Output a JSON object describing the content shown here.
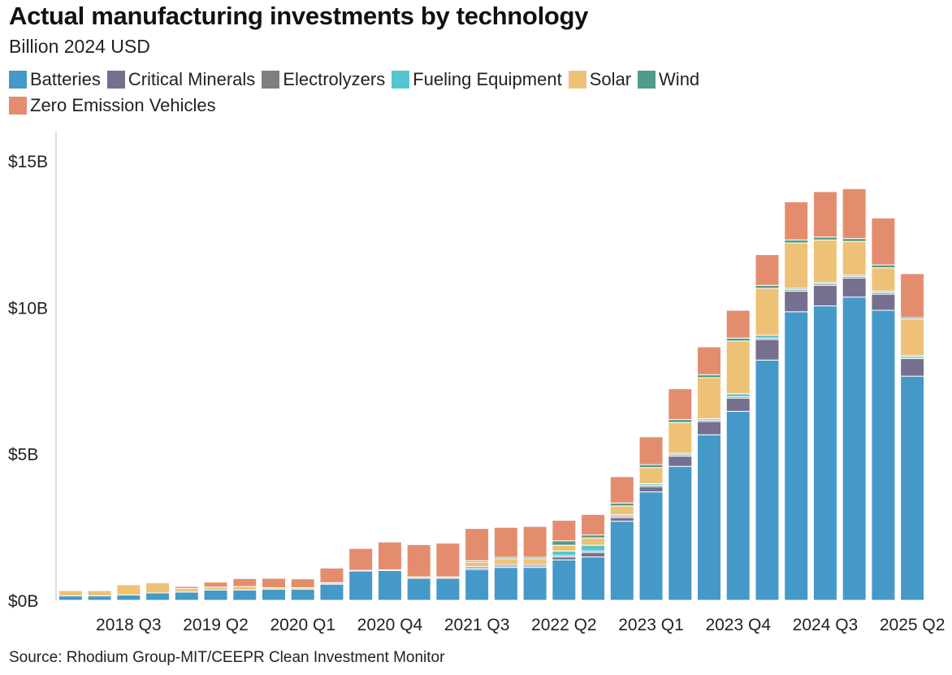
{
  "title": "Actual manufacturing investments by technology",
  "subtitle": "Billion 2024 USD",
  "source": "Source: Rhodium Group-MIT/CEEPR Clean Investment Monitor",
  "colors": {
    "Batteries": "#4599c8",
    "Critical Minerals": "#75708f",
    "Electrolyzers": "#7d807e",
    "Fueling Equipment": "#55c6cf",
    "Solar": "#eec276",
    "Wind": "#4f9c88",
    "Zero Emission Vehicles": "#e48d6e"
  },
  "chart_data": {
    "type": "bar",
    "stacked": true,
    "ylim": [
      0,
      16
    ],
    "yticks": [
      {
        "value": 0,
        "label": "$0B"
      },
      {
        "value": 5,
        "label": "$5B"
      },
      {
        "value": 10,
        "label": "$10B"
      },
      {
        "value": 15,
        "label": "$15B"
      }
    ],
    "xtick_labels": [
      "2018 Q3",
      "2019 Q2",
      "2020 Q1",
      "2020 Q4",
      "2021 Q3",
      "2022 Q2",
      "2023 Q1",
      "2023 Q4",
      "2024 Q3",
      "2025 Q2"
    ],
    "categories": [
      "2018 Q1",
      "2018 Q2",
      "2018 Q3",
      "2018 Q4",
      "2019 Q1",
      "2019 Q2",
      "2019 Q3",
      "2019 Q4",
      "2020 Q1",
      "2020 Q2",
      "2020 Q3",
      "2020 Q4",
      "2021 Q1",
      "2021 Q2",
      "2021 Q3",
      "2021 Q4",
      "2022 Q1",
      "2022 Q2",
      "2022 Q3",
      "2022 Q4",
      "2023 Q1",
      "2023 Q2",
      "2023 Q3",
      "2023 Q4",
      "2024 Q1",
      "2024 Q2",
      "2024 Q3",
      "2024 Q4",
      "2025 Q1",
      "2025 Q2"
    ],
    "series": [
      {
        "name": "Batteries",
        "values": [
          0.15,
          0.15,
          0.18,
          0.25,
          0.28,
          0.35,
          0.35,
          0.38,
          0.38,
          0.55,
          1.0,
          1.02,
          0.75,
          0.75,
          1.05,
          1.12,
          1.12,
          1.38,
          1.48,
          2.7,
          3.7,
          4.57,
          5.65,
          6.45,
          8.2,
          9.85,
          10.05,
          10.35,
          9.9,
          7.65
        ]
      },
      {
        "name": "Critical Minerals",
        "values": [
          0,
          0,
          0,
          0,
          0,
          0,
          0,
          0,
          0,
          0,
          0,
          0,
          0,
          0,
          0.05,
          0.05,
          0.05,
          0.1,
          0.15,
          0.12,
          0.18,
          0.35,
          0.45,
          0.45,
          0.7,
          0.7,
          0.7,
          0.65,
          0.55,
          0.6
        ]
      },
      {
        "name": "Electrolyzers",
        "values": [
          0,
          0,
          0,
          0,
          0,
          0,
          0,
          0,
          0,
          0,
          0,
          0,
          0,
          0,
          0.05,
          0.05,
          0.05,
          0.05,
          0.05,
          0.05,
          0.05,
          0.05,
          0.05,
          0.05,
          0.05,
          0.05,
          0.05,
          0.05,
          0.05,
          0.05
        ]
      },
      {
        "name": "Fueling Equipment",
        "values": [
          0,
          0,
          0,
          0,
          0,
          0,
          0,
          0,
          0,
          0,
          0,
          0,
          0,
          0,
          0,
          0,
          0,
          0.15,
          0.2,
          0.05,
          0.05,
          0.05,
          0.05,
          0.1,
          0.1,
          0.05,
          0.05,
          0.05,
          0.05,
          0.05
        ]
      },
      {
        "name": "Solar",
        "values": [
          0.18,
          0.18,
          0.35,
          0.35,
          0.12,
          0.1,
          0.12,
          0.05,
          0.05,
          0.05,
          0.02,
          0.02,
          0.05,
          0.05,
          0.15,
          0.2,
          0.2,
          0.2,
          0.25,
          0.3,
          0.55,
          1.05,
          1.4,
          1.8,
          1.6,
          1.55,
          1.45,
          1.15,
          0.8,
          1.25
        ]
      },
      {
        "name": "Wind",
        "values": [
          0,
          0,
          0,
          0.02,
          0,
          0,
          0,
          0,
          0,
          0,
          0,
          0,
          0,
          0,
          0.05,
          0.05,
          0.05,
          0.15,
          0.1,
          0.1,
          0.1,
          0.1,
          0.1,
          0.1,
          0.1,
          0.1,
          0.1,
          0.1,
          0.1,
          0.05
        ]
      },
      {
        "name": "Zero Emission Vehicles",
        "values": [
          0,
          0,
          0,
          0.03,
          0.07,
          0.17,
          0.27,
          0.32,
          0.3,
          0.5,
          0.75,
          0.95,
          1.1,
          1.15,
          1.1,
          1.02,
          1.05,
          0.7,
          0.7,
          0.9,
          0.95,
          1.05,
          0.95,
          0.95,
          1.05,
          1.3,
          1.55,
          1.7,
          1.6,
          1.5
        ]
      }
    ]
  }
}
